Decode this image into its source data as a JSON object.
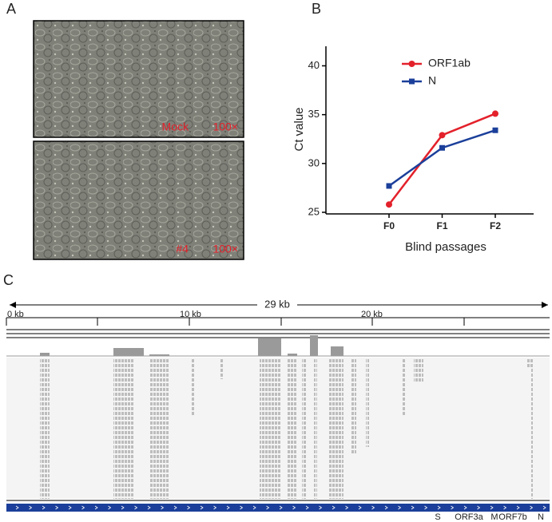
{
  "panel_labels": [
    "A",
    "B",
    "C"
  ],
  "panel_a": {
    "images": [
      {
        "label": "Mock",
        "magnification": "100×"
      },
      {
        "label": "#4",
        "magnification": "100×"
      }
    ]
  },
  "chart_data": {
    "type": "line",
    "categories": [
      "F0",
      "F1",
      "F2"
    ],
    "x_label": "Blind passages",
    "y_label": "Ct value",
    "series": [
      {
        "name": "ORF1ab",
        "color": "#e3212b",
        "marker": "circle",
        "values": [
          25.8,
          32.9,
          35.1
        ]
      },
      {
        "name": "N",
        "color": "#1b3f9a",
        "marker": "square",
        "values": [
          27.7,
          31.6,
          33.4
        ]
      }
    ],
    "ylim": [
      25,
      42
    ],
    "yticks": [
      25,
      30,
      35,
      40
    ],
    "grid": false,
    "legend": "top-right"
  },
  "panel_c": {
    "span": "29 kb",
    "ruler_labels": [
      "0 kb",
      "10 kb",
      "20 kb"
    ],
    "genes": [
      "S",
      "ORF3a",
      "M",
      "ORF7b",
      "N"
    ]
  }
}
